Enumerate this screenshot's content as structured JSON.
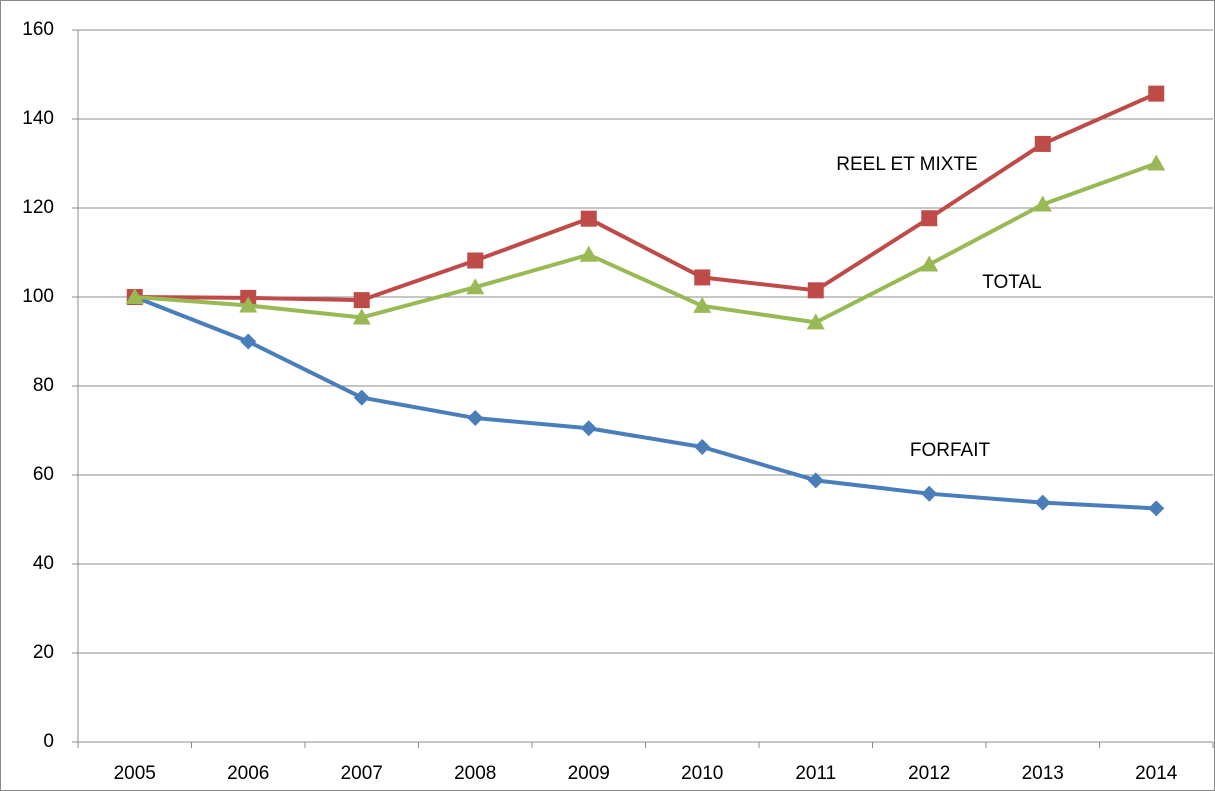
{
  "chart_data": {
    "type": "line",
    "categories": [
      "2005",
      "2006",
      "2007",
      "2008",
      "2009",
      "2010",
      "2011",
      "2012",
      "2013",
      "2014"
    ],
    "series": [
      {
        "name": "FORFAIT",
        "color": "#4a7ebb",
        "marker": "diamond",
        "values": [
          100,
          90,
          77.4,
          72.8,
          70.5,
          66.3,
          58.8,
          55.8,
          53.8,
          52.5
        ]
      },
      {
        "name": "REEL ET MIXTE",
        "color": "#be4b48",
        "marker": "square",
        "values": [
          100,
          99.8,
          99.3,
          108.2,
          117.6,
          104.4,
          101.5,
          117.7,
          134.4,
          145.7
        ]
      },
      {
        "name": "TOTAL",
        "color": "#98b954",
        "marker": "triangle",
        "values": [
          100,
          98.1,
          95.4,
          102.2,
          109.5,
          98,
          94.3,
          107.3,
          120.8,
          130
        ]
      }
    ],
    "ylim": [
      0,
      160
    ],
    "yticks": [
      0,
      20,
      40,
      60,
      80,
      100,
      120,
      140,
      160
    ],
    "grid": true
  }
}
